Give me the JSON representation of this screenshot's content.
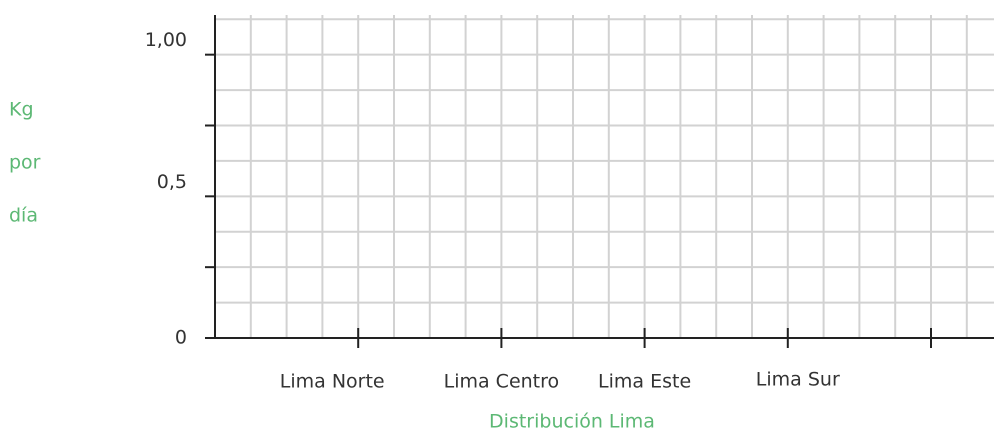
{
  "chart_data": {
    "type": "bar",
    "ylabel_lines": [
      "Kg",
      "por",
      "día"
    ],
    "xlabel": "Distribución Lima",
    "categories": [
      "Lima Norte",
      "Lima Centro",
      "Lima Este",
      "Lima Sur"
    ],
    "ylim": [
      0,
      1.14
    ],
    "yticks": [
      0,
      {
        "value": 0.5,
        "label": "0,5"
      },
      {
        "value": 1,
        "label": "1,00"
      }
    ],
    "minor_yticks": [
      0.25,
      0.75
    ],
    "ygrid": [
      0.125,
      0.25,
      0.375,
      0.5,
      0.625,
      0.75,
      0.875,
      1,
      1.125
    ],
    "grid": true,
    "label_color": "#5cb874"
  }
}
